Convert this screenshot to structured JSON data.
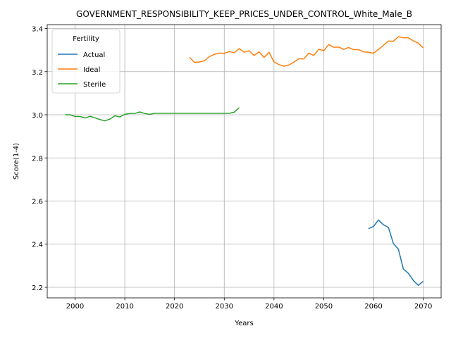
{
  "chart_data": {
    "type": "line",
    "title": "GOVERNMENT_RESPONSIBILITY_KEEP_PRICES_UNDER_CONTROL_White_Male_B",
    "xlabel": "Years",
    "ylabel": "Score(1-4)",
    "xlim": [
      1994.4,
      2073.6
    ],
    "ylim": [
      2.151,
      3.418
    ],
    "xticks": [
      2000,
      2010,
      2020,
      2030,
      2040,
      2050,
      2060,
      2070
    ],
    "yticks": [
      2.2,
      2.4,
      2.6,
      2.8,
      3.0,
      3.2,
      3.4
    ],
    "grid": true,
    "legend": {
      "title": "Fertility",
      "placement": "upper-left"
    },
    "series": [
      {
        "name": "Actual",
        "color": "#1f77b4",
        "x": [
          2059,
          2060,
          2061,
          2062,
          2063,
          2064,
          2065,
          2066,
          2067,
          2068,
          2069,
          2070
        ],
        "y": [
          2.472,
          2.482,
          2.512,
          2.49,
          2.478,
          2.403,
          2.377,
          2.285,
          2.265,
          2.232,
          2.209,
          2.228
        ]
      },
      {
        "name": "Ideal",
        "color": "#ff7f0e",
        "x": [
          2023,
          2024,
          2025,
          2026,
          2027,
          2028,
          2029,
          2030,
          2031,
          2032,
          2033,
          2034,
          2035,
          2036,
          2037,
          2038,
          2039,
          2040,
          2041,
          2042,
          2043,
          2044,
          2045,
          2046,
          2047,
          2048,
          2049,
          2050,
          2051,
          2052,
          2053,
          2054,
          2055,
          2056,
          2057,
          2058,
          2059,
          2060,
          2061,
          2062,
          2063,
          2064,
          2065,
          2066,
          2067,
          2068,
          2069,
          2070
        ],
        "y": [
          3.267,
          3.243,
          3.245,
          3.25,
          3.27,
          3.28,
          3.286,
          3.285,
          3.293,
          3.288,
          3.307,
          3.29,
          3.297,
          3.275,
          3.292,
          3.266,
          3.29,
          3.245,
          3.233,
          3.225,
          3.231,
          3.244,
          3.26,
          3.259,
          3.286,
          3.275,
          3.304,
          3.298,
          3.326,
          3.313,
          3.314,
          3.303,
          3.312,
          3.302,
          3.302,
          3.292,
          3.29,
          3.285,
          3.303,
          3.322,
          3.342,
          3.341,
          3.362,
          3.357,
          3.357,
          3.343,
          3.332,
          3.31
        ]
      },
      {
        "name": "Sterile",
        "color": "#2ca02c",
        "x": [
          1998,
          1999,
          2000,
          2001,
          2002,
          2003,
          2004,
          2005,
          2006,
          2007,
          2008,
          2009,
          2010,
          2011,
          2012,
          2013,
          2014,
          2015,
          2016,
          2017,
          2018,
          2019,
          2020,
          2021,
          2022,
          2023,
          2024,
          2025,
          2026,
          2027,
          2028,
          2029,
          2030,
          2031,
          2032,
          2033
        ],
        "y": [
          3.0,
          3.0,
          2.992,
          2.992,
          2.985,
          2.993,
          2.986,
          2.978,
          2.972,
          2.98,
          2.995,
          2.99,
          3.002,
          3.006,
          3.006,
          3.013,
          3.006,
          3.002,
          3.007,
          3.007,
          3.007,
          3.007,
          3.007,
          3.007,
          3.007,
          3.007,
          3.007,
          3.007,
          3.007,
          3.007,
          3.007,
          3.007,
          3.007,
          3.007,
          3.012,
          3.033
        ]
      }
    ]
  }
}
